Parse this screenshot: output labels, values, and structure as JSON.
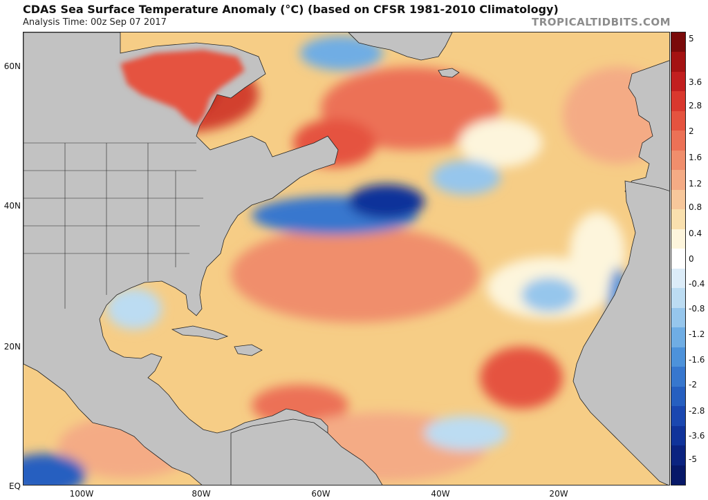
{
  "header": {
    "title": "CDAS Sea Surface Temperature Anomaly (°C) (based on CFSR 1981-2010 Climatology)",
    "analysis_time": "Analysis Time: 00z Sep 07 2017",
    "credit": "TROPICALTIDBITS.COM"
  },
  "map": {
    "lat_labels": [
      "60N",
      "40N",
      "20N",
      "EQ"
    ],
    "lon_labels": [
      "100W",
      "80W",
      "60W",
      "40W",
      "20W"
    ],
    "land_color": "#c2c2c2",
    "ocean_base_color": "#f6cd86"
  },
  "colorbar": {
    "labels": [
      "5",
      "3.6",
      "2.8",
      "2",
      "1.6",
      "1.2",
      "0.8",
      "0.4",
      "0",
      "-0.4",
      "-0.8",
      "-1.2",
      "-1.6",
      "-2",
      "-2.8",
      "-3.6",
      "-5"
    ],
    "colors": [
      "#7a0a0a",
      "#a41212",
      "#c21f1f",
      "#d9382e",
      "#e5533f",
      "#ec7156",
      "#f08e6c",
      "#f4ab85",
      "#f7c79b",
      "#f9e0ae",
      "#fdf5dc",
      "#ffffff",
      "#dcecf8",
      "#bcdcf2",
      "#96c6ec",
      "#6fade4",
      "#4d92da",
      "#3777ce",
      "#265fc0",
      "#1a47b0",
      "#10339a",
      "#0b2380",
      "#071868"
    ]
  }
}
